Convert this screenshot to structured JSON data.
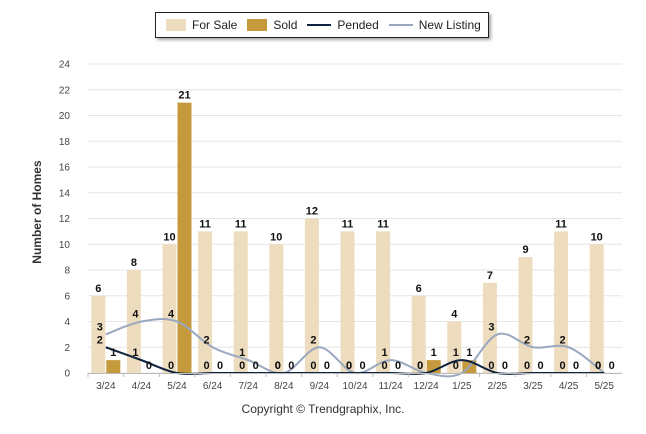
{
  "legend": {
    "for_sale": "For Sale",
    "sold": "Sold",
    "pended": "Pended",
    "new_listing": "New Listing"
  },
  "credit": "Copyright © Trendgraphix, Inc.",
  "chart_data": {
    "type": "bar",
    "ylabel": "Number of Homes",
    "ylim": [
      0,
      24
    ],
    "yticks": [
      0,
      2,
      4,
      6,
      8,
      10,
      12,
      14,
      16,
      18,
      20,
      22,
      24
    ],
    "grid": true,
    "legend_position": "top-center",
    "categories": [
      "3/24",
      "4/24",
      "5/24",
      "6/24",
      "7/24",
      "8/24",
      "9/24",
      "10/24",
      "11/24",
      "12/24",
      "1/25",
      "2/25",
      "3/25",
      "4/25",
      "5/25"
    ],
    "series": [
      {
        "name": "For Sale",
        "kind": "bar",
        "color": "#eddcbd",
        "values": [
          6,
          8,
          10,
          11,
          11,
          10,
          12,
          11,
          11,
          6,
          4,
          7,
          9,
          11,
          10
        ]
      },
      {
        "name": "Sold",
        "kind": "bar",
        "color": "#c49a3c",
        "values": [
          1,
          0,
          21,
          0,
          0,
          0,
          0,
          0,
          0,
          1,
          1,
          0,
          0,
          0,
          0
        ]
      },
      {
        "name": "Pended",
        "kind": "line",
        "color": "#0d2340",
        "values": [
          2,
          1,
          0,
          0,
          0,
          0,
          0,
          0,
          0,
          0,
          1,
          0,
          0,
          0,
          0
        ]
      },
      {
        "name": "New Listing",
        "kind": "line",
        "color": "#9aa8bf",
        "values": [
          3,
          4,
          4,
          2,
          1,
          0,
          2,
          0,
          1,
          0,
          0,
          3,
          2,
          2,
          0
        ]
      }
    ]
  }
}
